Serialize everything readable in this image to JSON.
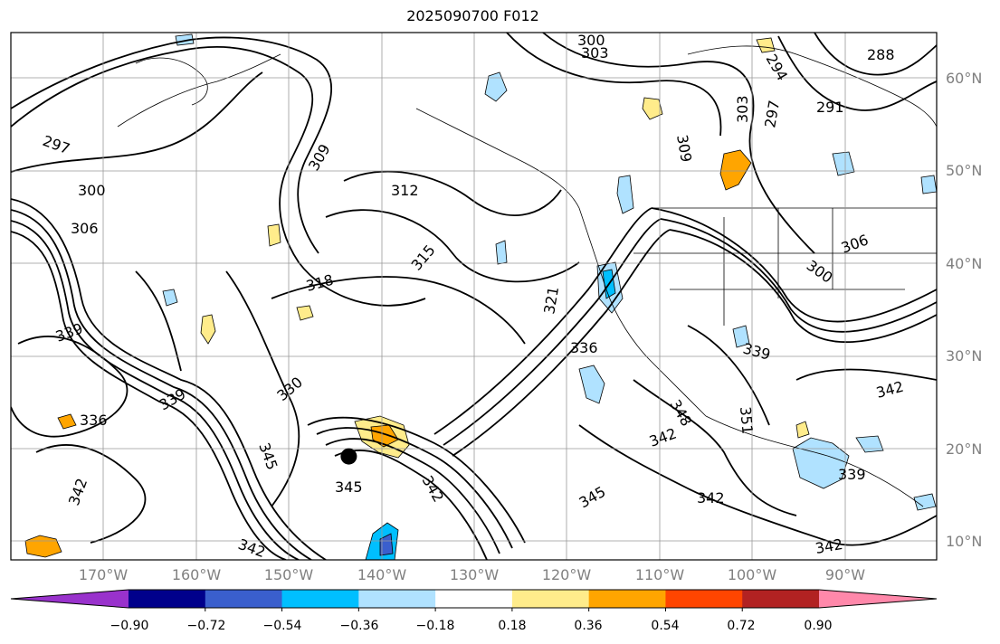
{
  "title": "2025090700 F012",
  "lat_labels": [
    "60°N",
    "50°N",
    "40°N",
    "30°N",
    "20°N",
    "10°N"
  ],
  "lon_labels": [
    "170°W",
    "160°W",
    "150°W",
    "140°W",
    "130°W",
    "120°W",
    "110°W",
    "100°W",
    "90°W"
  ],
  "colorbar": {
    "tick_labels": [
      "−0.90",
      "−0.72",
      "−0.54",
      "−0.36",
      "−0.18",
      "0.18",
      "0.36",
      "0.54",
      "0.72",
      "0.90"
    ],
    "colors": [
      "#9932cc",
      "#00008b",
      "#3a5fcd",
      "#00bfff",
      "#b0e2ff",
      "#ffffff",
      "#ffec8b",
      "#ffa500",
      "#ff4500",
      "#b22222",
      "#ff88aa"
    ],
    "extend": "both"
  },
  "contour_labels": [
    {
      "text": "300"
    },
    {
      "text": "303"
    },
    {
      "text": "297"
    },
    {
      "text": "300"
    },
    {
      "text": "306"
    },
    {
      "text": "309"
    },
    {
      "text": "312"
    },
    {
      "text": "315"
    },
    {
      "text": "318"
    },
    {
      "text": "321"
    },
    {
      "text": "336"
    },
    {
      "text": "339"
    },
    {
      "text": "336"
    },
    {
      "text": "339"
    },
    {
      "text": "330"
    },
    {
      "text": "345"
    },
    {
      "text": "342"
    },
    {
      "text": "345"
    },
    {
      "text": "342"
    },
    {
      "text": "342"
    },
    {
      "text": "348"
    },
    {
      "text": "351"
    },
    {
      "text": "342"
    },
    {
      "text": "339"
    },
    {
      "text": "306"
    },
    {
      "text": "300"
    },
    {
      "text": "291"
    },
    {
      "text": "294"
    },
    {
      "text": "297"
    },
    {
      "text": "303"
    },
    {
      "text": "309"
    },
    {
      "text": "288"
    },
    {
      "text": "342"
    },
    {
      "text": "342"
    },
    {
      "text": "345"
    },
    {
      "text": "342"
    },
    {
      "text": "339"
    }
  ],
  "storm_marker": {
    "lon": -143.5,
    "lat": 17.5
  }
}
